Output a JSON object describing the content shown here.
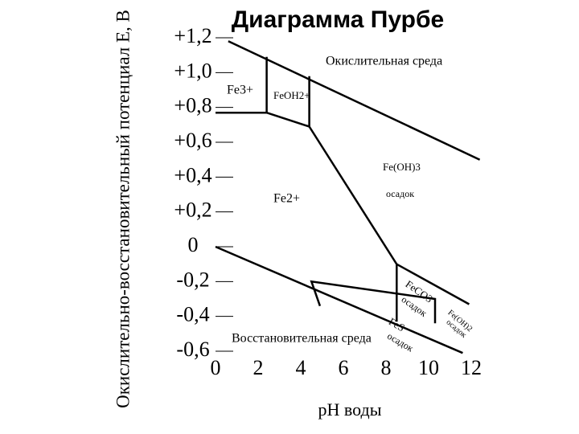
{
  "chart_data": {
    "type": "line",
    "title": "Диаграмма Пурбе",
    "x_label": "pH воды",
    "y_label": "Окислительно-восстановительный потенциал E, B",
    "xlim": [
      0,
      12
    ],
    "ylim": [
      -0.6,
      1.2
    ],
    "xticks": [
      0,
      2,
      4,
      6,
      8,
      10,
      12
    ],
    "yticks": [
      {
        "value": 1.2,
        "label": "+1,2"
      },
      {
        "value": 1.0,
        "label": "+1,0"
      },
      {
        "value": 0.8,
        "label": "+0,8"
      },
      {
        "value": 0.6,
        "label": "+0,6"
      },
      {
        "value": 0.4,
        "label": "+0,4"
      },
      {
        "value": 0.2,
        "label": "+0,2"
      },
      0,
      {
        "value": -0.2,
        "label": "-0,2"
      },
      {
        "value": -0.4,
        "label": "-0,4"
      },
      {
        "value": -0.6,
        "label": "-0,6"
      }
    ],
    "grid": false,
    "series": [
      {
        "color": "#000000",
        "x": [
          0.6,
          12.4
        ],
        "values": [
          1.18,
          0.5
        ]
      },
      {
        "color": "#000000",
        "x": [
          0,
          11.6
        ],
        "values": [
          0,
          -0.61
        ]
      },
      {
        "color": "#000000",
        "x": [
          0,
          2.4,
          2.4
        ],
        "values": [
          0.77,
          0.77,
          1.09
        ]
      },
      {
        "color": "#000000",
        "x": [
          2.4,
          4.4,
          4.4
        ],
        "values": [
          0.77,
          0.69,
          0.98
        ]
      },
      {
        "color": "#000000",
        "x": [
          4.4,
          8.5,
          8.5
        ],
        "values": [
          0.69,
          -0.1,
          -0.43
        ]
      },
      {
        "color": "#000000",
        "x": [
          8.5,
          11.9
        ],
        "values": [
          -0.1,
          -0.33
        ]
      },
      {
        "color": "#000000",
        "x": [
          4.9,
          4.5,
          10.3,
          10.3
        ],
        "values": [
          -0.34,
          -0.2,
          -0.3,
          -0.44
        ]
      }
    ],
    "annotations": [
      "Окислительная среда",
      "Fe3+",
      "FeOH2+",
      "Fe2+",
      "Fe(OH)3",
      "осадок",
      "FeCO3",
      "осадок",
      "FeS",
      "осадок",
      "Fe(OH)2",
      "осадок",
      "Восстановительная среда"
    ]
  }
}
